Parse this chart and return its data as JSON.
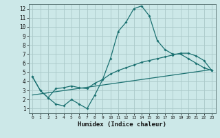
{
  "xlabel": "Humidex (Indice chaleur)",
  "xlim": [
    -0.5,
    23.5
  ],
  "ylim": [
    0.5,
    12.5
  ],
  "xticks": [
    0,
    1,
    2,
    3,
    4,
    5,
    6,
    7,
    8,
    9,
    10,
    11,
    12,
    13,
    14,
    15,
    16,
    17,
    18,
    19,
    20,
    21,
    22,
    23
  ],
  "yticks": [
    1,
    2,
    3,
    4,
    5,
    6,
    7,
    8,
    9,
    10,
    11,
    12
  ],
  "bg_color": "#cce8e8",
  "grid_color": "#aac8c8",
  "line_color": "#1a7070",
  "line1_x": [
    0,
    1,
    2,
    3,
    4,
    5,
    6,
    7,
    8,
    9,
    10,
    11,
    12,
    13,
    14,
    15,
    16,
    17,
    18,
    19,
    20,
    21,
    22,
    23
  ],
  "line1_y": [
    4.5,
    3.0,
    2.2,
    1.5,
    1.3,
    2.0,
    1.5,
    1.0,
    2.5,
    4.2,
    6.5,
    9.5,
    10.5,
    12.0,
    12.3,
    11.2,
    8.5,
    7.5,
    7.0,
    7.0,
    6.5,
    6.0,
    5.5,
    5.2
  ],
  "line2_x": [
    0,
    1,
    2,
    3,
    4,
    5,
    6,
    7,
    8,
    9,
    10,
    11,
    12,
    13,
    14,
    15,
    16,
    17,
    18,
    19,
    20,
    21,
    22,
    23
  ],
  "line2_y": [
    4.5,
    3.0,
    2.2,
    3.2,
    3.3,
    3.5,
    3.3,
    3.2,
    3.8,
    4.2,
    4.8,
    5.2,
    5.5,
    5.8,
    6.1,
    6.3,
    6.5,
    6.7,
    6.9,
    7.1,
    7.1,
    6.8,
    6.3,
    5.2
  ],
  "line3_x": [
    0,
    23
  ],
  "line3_y": [
    2.5,
    5.3
  ]
}
